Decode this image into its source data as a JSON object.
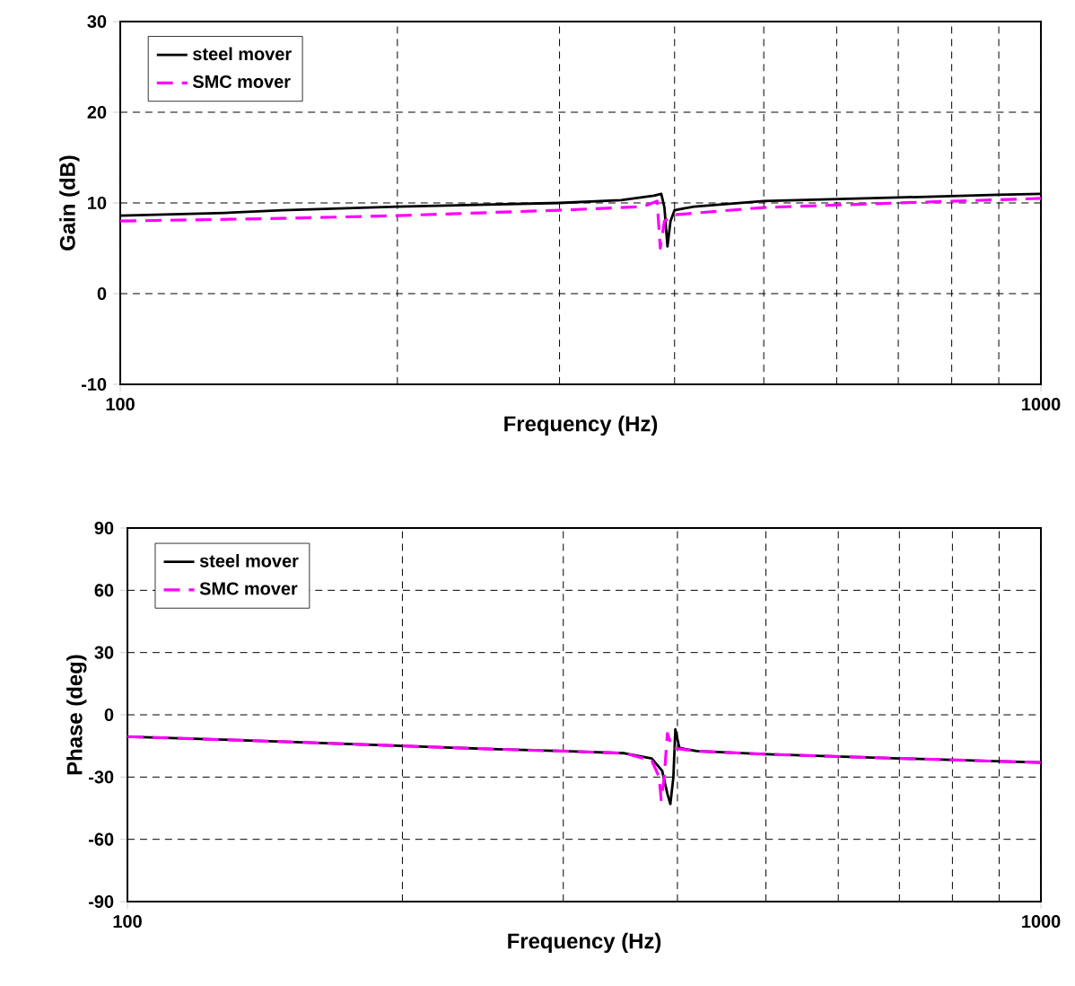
{
  "chart_data": [
    {
      "type": "line",
      "xlabel": "Frequency (Hz)",
      "ylabel": "Gain (dB)",
      "log": "x",
      "xlim": [
        100,
        1000
      ],
      "xticks": [
        100,
        1000
      ],
      "ylim": [
        -10,
        30
      ],
      "yticks": [
        -10,
        0,
        10,
        20,
        30
      ],
      "grid": true,
      "legend": "top left",
      "series": [
        {
          "name": "steel mover",
          "color": "#000000",
          "line_style": "solid",
          "x": [
            100,
            130,
            150,
            200,
            300,
            350,
            380,
            387,
            390,
            393,
            396,
            400,
            420,
            500,
            700,
            900,
            1000
          ],
          "values": [
            8.6,
            8.9,
            9.2,
            9.6,
            10,
            10.3,
            10.8,
            11,
            9.5,
            5.2,
            8,
            9.2,
            9.6,
            10.2,
            10.6,
            10.9,
            11
          ]
        },
        {
          "name": "SMC mover",
          "color": "#ff00ff",
          "line_style": "dashed",
          "x": [
            100,
            150,
            200,
            300,
            370,
            383,
            386,
            390,
            400,
            500,
            700,
            1000
          ],
          "values": [
            8,
            8.3,
            8.6,
            9.2,
            9.6,
            10.2,
            5,
            8,
            8.7,
            9.5,
            10,
            10.5
          ]
        }
      ]
    },
    {
      "type": "line",
      "xlabel": "Frequency (Hz)",
      "ylabel": "Phase (deg)",
      "log": "x",
      "xlim": [
        100,
        1000
      ],
      "xticks": [
        100,
        1000
      ],
      "ylim": [
        -90,
        90
      ],
      "yticks": [
        -90,
        -60,
        -30,
        0,
        30,
        60,
        90
      ],
      "grid": true,
      "legend": "top left",
      "series": [
        {
          "name": "steel mover",
          "color": "#000000",
          "line_style": "solid",
          "x": [
            100,
            150,
            200,
            250,
            300,
            350,
            375,
            385,
            390,
            393,
            396,
            398,
            402,
            420,
            500,
            700,
            1000
          ],
          "values": [
            -10.5,
            -13,
            -15,
            -16.5,
            -17.5,
            -18.5,
            -21,
            -27,
            -38,
            -43,
            -30,
            -7,
            -16,
            -17.5,
            -19,
            -21,
            -23
          ]
        },
        {
          "name": "SMC mover",
          "color": "#ff00ff",
          "line_style": "dashed",
          "x": [
            100,
            150,
            200,
            250,
            300,
            350,
            375,
            382,
            384,
            387,
            390,
            395,
            420,
            500,
            700,
            1000
          ],
          "values": [
            -10.5,
            -13,
            -15,
            -16.5,
            -17.5,
            -18.5,
            -22,
            -30,
            -41,
            -30,
            -9,
            -16,
            -17.5,
            -19,
            -21,
            -23
          ]
        }
      ]
    }
  ]
}
